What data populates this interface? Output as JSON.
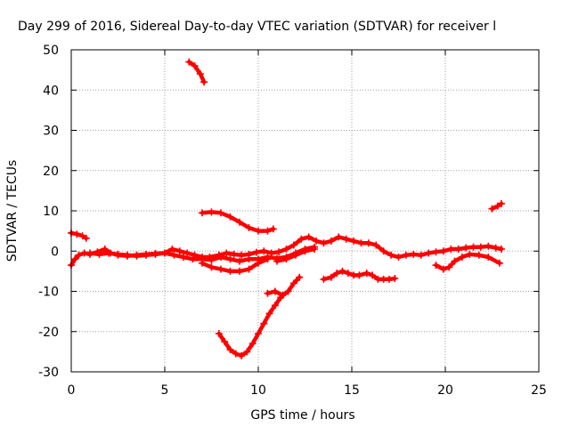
{
  "chart_data": {
    "type": "scatter",
    "title": "Day 299 of 2016, Sidereal Day-to-day VTEC variation (SDTVAR) for receiver l",
    "xlabel": "GPS time / hours",
    "ylabel": "SDTVAR / TECUs",
    "xlim": [
      0,
      25
    ],
    "ylim": [
      -30,
      50
    ],
    "x_ticks": [
      0,
      5,
      10,
      15,
      20,
      25
    ],
    "y_ticks": [
      -30,
      -20,
      -10,
      0,
      10,
      20,
      30,
      40,
      50
    ],
    "grid": true,
    "marker": "plus",
    "color": "#ff0000",
    "series": [
      {
        "x": [
          0.0,
          0.3,
          0.6,
          0.8
        ],
        "y": [
          4.5,
          4.2,
          3.8,
          3.2
        ]
      },
      {
        "x": [
          0.0,
          0.2,
          0.4,
          0.7,
          1.0,
          1.4,
          1.8,
          2.1,
          2.5,
          3.0,
          3.5,
          4.0,
          4.5,
          5.0,
          5.4,
          5.8,
          6.2,
          6.6,
          7.0,
          7.4,
          7.9,
          8.3,
          8.7,
          9.1,
          9.5,
          9.9,
          10.3,
          10.7,
          11.1,
          11.5,
          11.9,
          12.3,
          12.7,
          13.1,
          13.5,
          13.9,
          14.3,
          14.7,
          15.1,
          15.5,
          15.9,
          16.3,
          16.7,
          17.1,
          17.5,
          17.9,
          18.3,
          18.7,
          19.1,
          19.5,
          19.9,
          20.3,
          20.7,
          21.1,
          21.5,
          21.9,
          22.3,
          22.7,
          23.0
        ],
        "y": [
          -3.5,
          -2.0,
          -1.0,
          -0.5,
          -0.8,
          -0.2,
          0.5,
          -0.5,
          -1.0,
          -1.2,
          -1.0,
          -0.8,
          -0.6,
          -0.5,
          0.5,
          0.0,
          -0.5,
          -1.0,
          -1.5,
          -1.5,
          -1.0,
          -0.5,
          -0.8,
          -1.0,
          -0.8,
          -0.3,
          0.0,
          -0.5,
          -0.2,
          0.5,
          1.5,
          3.0,
          3.5,
          2.5,
          2.0,
          2.5,
          3.5,
          3.0,
          2.5,
          2.0,
          2.0,
          1.5,
          0.0,
          -1.0,
          -1.5,
          -1.0,
          -0.8,
          -1.0,
          -0.5,
          -0.2,
          0.0,
          0.5,
          0.5,
          0.8,
          1.0,
          1.0,
          1.2,
          0.8,
          0.5
        ]
      },
      {
        "x": [
          1.0,
          1.5,
          2.0,
          2.5,
          3.0,
          3.5,
          4.0,
          4.5,
          5.0,
          5.5,
          6.0,
          6.5,
          7.0,
          7.5,
          8.0,
          8.5,
          9.0,
          9.5,
          10.0,
          10.5,
          11.0,
          11.5,
          12.0,
          12.5,
          13.0
        ],
        "y": [
          -0.5,
          -0.8,
          -0.5,
          -0.8,
          -1.0,
          -1.2,
          -1.0,
          -0.8,
          -0.5,
          -1.0,
          -1.5,
          -2.0,
          -2.0,
          -2.2,
          -1.5,
          -2.0,
          -2.5,
          -2.0,
          -2.0,
          -1.5,
          -1.8,
          -1.5,
          -0.5,
          0.5,
          1.0
        ]
      },
      {
        "x": [
          6.3,
          6.6,
          6.9,
          7.1
        ],
        "y": [
          47.0,
          46.0,
          44.0,
          42.0
        ]
      },
      {
        "x": [
          7.0,
          7.5,
          8.0,
          8.5,
          9.0,
          9.5,
          10.0,
          10.5,
          10.8
        ],
        "y": [
          9.5,
          9.7,
          9.5,
          8.5,
          7.2,
          5.8,
          5.0,
          5.0,
          5.5
        ]
      },
      {
        "x": [
          7.0,
          7.5,
          8.0,
          8.5,
          9.0,
          9.5,
          10.0,
          10.5
        ],
        "y": [
          -3.0,
          -4.0,
          -4.5,
          -5.0,
          -5.0,
          -4.5,
          -3.0,
          -2.0
        ]
      },
      {
        "x": [
          7.9,
          8.2,
          8.5,
          8.8,
          9.1,
          9.4,
          9.7,
          10.0,
          10.3,
          10.6,
          10.9,
          11.2
        ],
        "y": [
          -20.5,
          -22.5,
          -24.5,
          -25.5,
          -26.0,
          -25.0,
          -23.0,
          -20.5,
          -18.0,
          -15.5,
          -13.5,
          -11.5
        ]
      },
      {
        "x": [
          10.5,
          10.9,
          11.3,
          11.6,
          11.9,
          12.2
        ],
        "y": [
          -10.5,
          -10.0,
          -11.0,
          -10.0,
          -8.0,
          -6.5
        ]
      },
      {
        "x": [
          13.5,
          13.9,
          14.2,
          14.5,
          14.8,
          15.1,
          15.4,
          15.8,
          16.1,
          16.4,
          16.7,
          17.0,
          17.3
        ],
        "y": [
          -7.0,
          -6.5,
          -5.5,
          -5.0,
          -5.5,
          -6.0,
          -6.0,
          -5.5,
          -6.0,
          -7.0,
          -7.0,
          -7.0,
          -6.8
        ]
      },
      {
        "x": [
          11.0,
          11.5,
          12.0,
          12.5,
          13.0
        ],
        "y": [
          -2.5,
          -2.0,
          -1.0,
          0.0,
          0.5
        ]
      },
      {
        "x": [
          19.5,
          19.9,
          20.2,
          20.5,
          20.9,
          21.3,
          21.8,
          22.3,
          22.9
        ],
        "y": [
          -3.5,
          -4.5,
          -4.0,
          -2.5,
          -1.5,
          -0.8,
          -1.0,
          -1.5,
          -3.0
        ]
      },
      {
        "x": [
          22.5,
          22.8,
          23.0
        ],
        "y": [
          10.5,
          11.2,
          11.8
        ]
      }
    ]
  }
}
